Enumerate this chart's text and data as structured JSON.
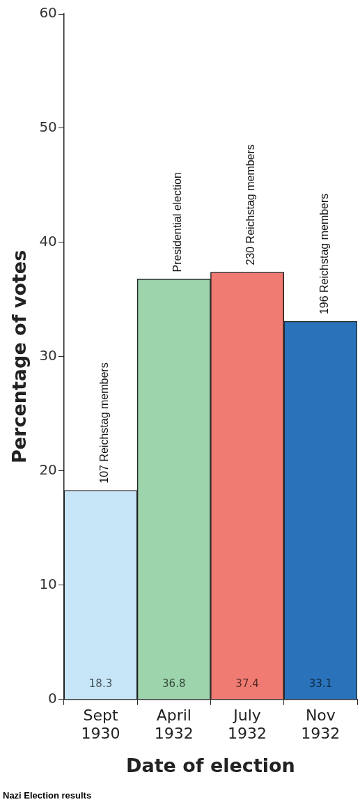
{
  "chart_data": {
    "type": "bar",
    "xlabel": "Date of election",
    "ylabel": "Percentage of votes",
    "categories": [
      "Sept 1930",
      "April 1932",
      "July 1932",
      "Nov 1932"
    ],
    "values": [
      18.3,
      36.8,
      37.4,
      33.1
    ],
    "colors": [
      "#c6e6f8",
      "#9dd4ac",
      "#f07b72",
      "#2a73bb"
    ],
    "ylim": [
      0,
      60
    ],
    "yticks": [
      0,
      10,
      20,
      30,
      40,
      50,
      60
    ],
    "grid": false,
    "data_labels": true,
    "legend": false,
    "annotations": [
      {
        "text": "107 Reichstag members",
        "x": "Sept 1930",
        "y": 18.3
      },
      {
        "text": "Presidential election",
        "x": "April 1932",
        "y": 36.8
      },
      {
        "text": "230 Reichstag members",
        "x": "July 1932",
        "y": 37.4
      },
      {
        "text": "196 Reichstag members",
        "x": "Nov 1932",
        "y": 33.1
      },
      "Nazi Election results"
    ]
  }
}
